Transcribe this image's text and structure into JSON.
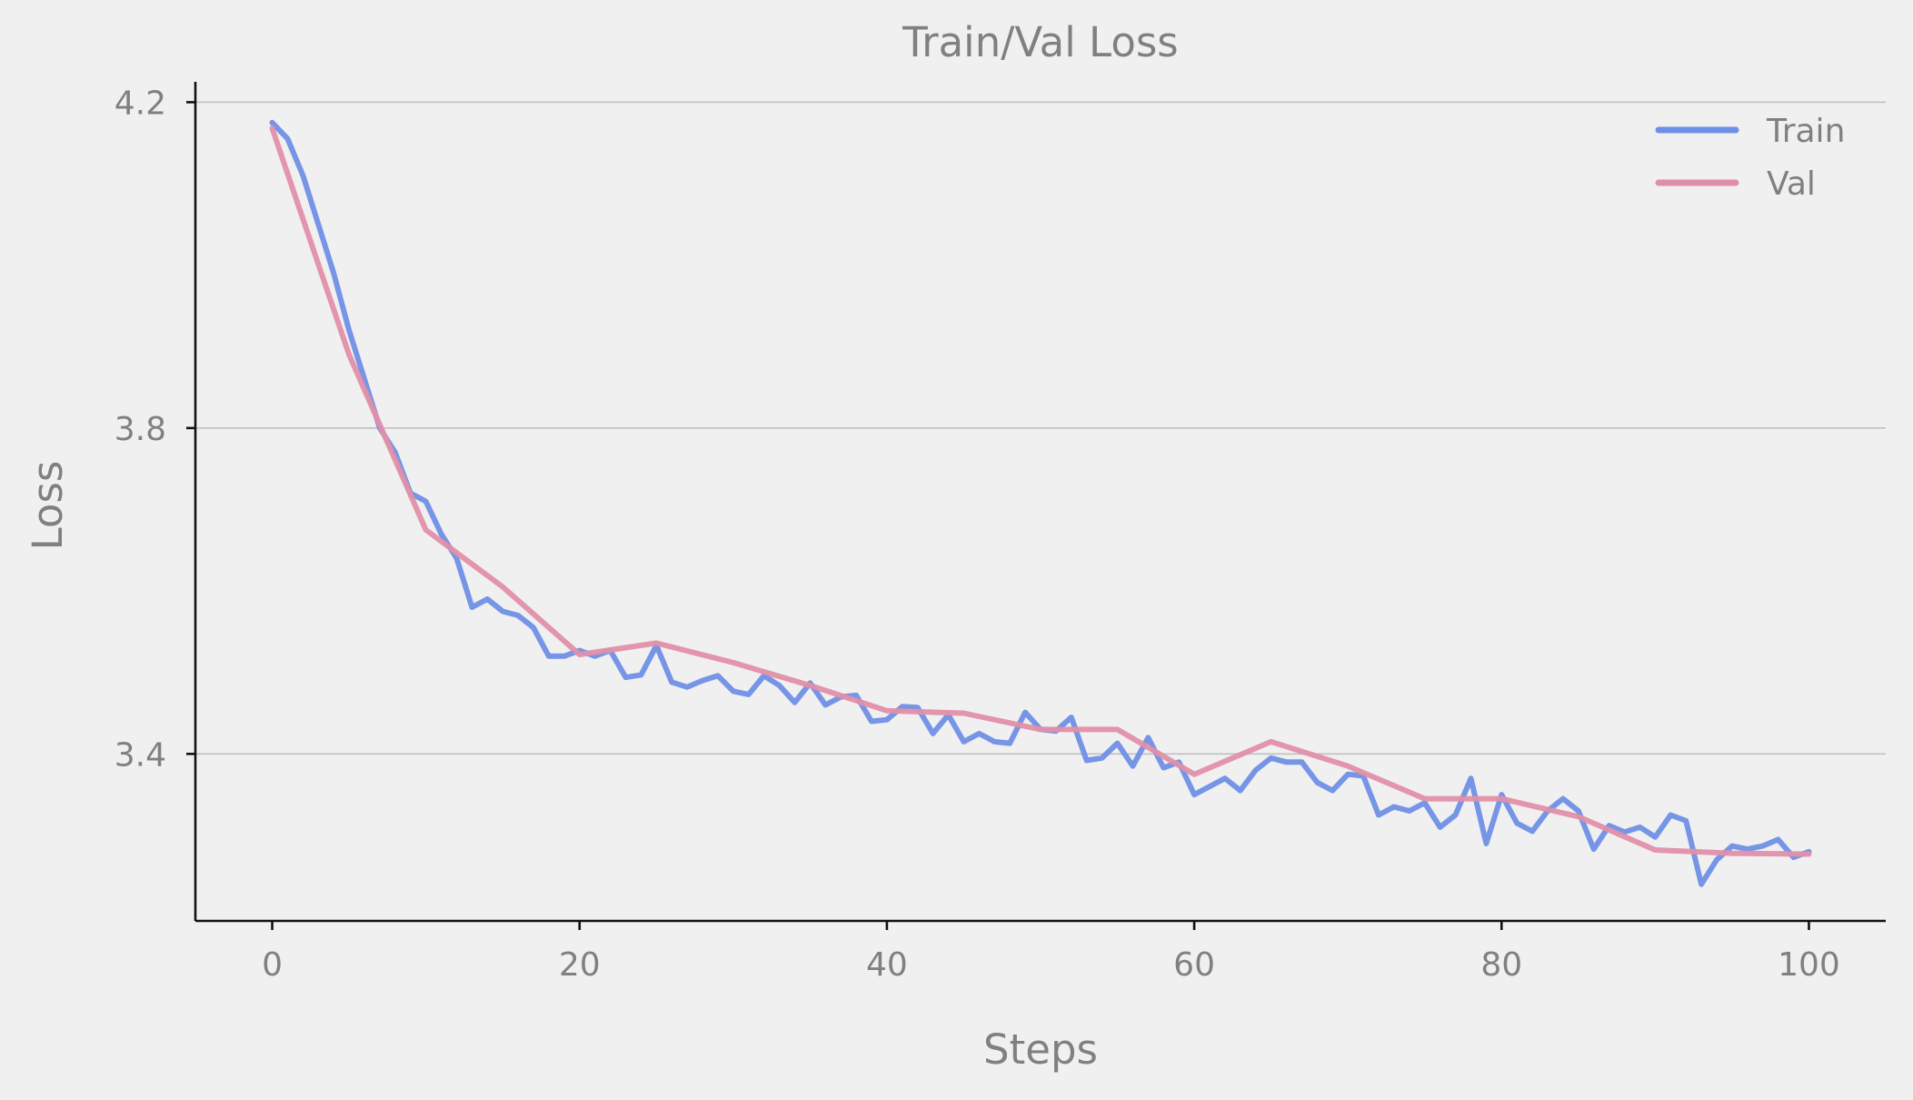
{
  "chart_data": {
    "type": "line",
    "title": "Train/Val Loss",
    "xlabel": "Steps",
    "ylabel": "Loss",
    "xlim": [
      -5,
      105
    ],
    "ylim": [
      3.195,
      4.225
    ],
    "xticks": [
      0,
      20,
      40,
      60,
      80,
      100
    ],
    "yticks": [
      3.4,
      3.8,
      4.2
    ],
    "xtick_labels": [
      "0",
      "20",
      "40",
      "60",
      "80",
      "100"
    ],
    "ytick_labels": [
      "3.4",
      "3.8",
      "4.2"
    ],
    "grid": "horizontal",
    "legend_position": "top-right",
    "series": [
      {
        "name": "Train",
        "color": "#6f8fe6",
        "x": [
          0,
          1,
          2,
          3,
          4,
          5,
          6,
          7,
          8,
          9,
          10,
          11,
          12,
          13,
          14,
          15,
          16,
          17,
          18,
          19,
          20,
          21,
          22,
          23,
          24,
          25,
          26,
          27,
          28,
          29,
          30,
          31,
          32,
          33,
          34,
          35,
          36,
          37,
          38,
          39,
          40,
          41,
          42,
          43,
          44,
          45,
          46,
          47,
          48,
          49,
          50,
          51,
          52,
          53,
          54,
          55,
          56,
          57,
          58,
          59,
          60,
          61,
          62,
          63,
          64,
          65,
          66,
          67,
          68,
          69,
          70,
          71,
          72,
          73,
          74,
          75,
          76,
          77,
          78,
          79,
          80,
          81,
          82,
          83,
          84,
          85,
          86,
          87,
          88,
          89,
          90,
          91,
          92,
          93,
          94,
          95,
          96,
          97,
          98,
          99,
          100
        ],
        "y": [
          4.175,
          4.155,
          4.11,
          4.05,
          3.99,
          3.92,
          3.86,
          3.8,
          3.77,
          3.72,
          3.71,
          3.67,
          3.64,
          3.58,
          3.59,
          3.575,
          3.57,
          3.555,
          3.52,
          3.52,
          3.527,
          3.52,
          3.527,
          3.494,
          3.497,
          3.533,
          3.488,
          3.482,
          3.49,
          3.496,
          3.477,
          3.473,
          3.496,
          3.484,
          3.463,
          3.487,
          3.46,
          3.47,
          3.472,
          3.44,
          3.442,
          3.458,
          3.457,
          3.425,
          3.448,
          3.415,
          3.425,
          3.415,
          3.413,
          3.451,
          3.43,
          3.428,
          3.445,
          3.392,
          3.395,
          3.413,
          3.385,
          3.42,
          3.383,
          3.39,
          3.35,
          3.36,
          3.37,
          3.355,
          3.38,
          3.395,
          3.39,
          3.39,
          3.365,
          3.355,
          3.375,
          3.373,
          3.325,
          3.335,
          3.33,
          3.34,
          3.31,
          3.325,
          3.37,
          3.29,
          3.35,
          3.315,
          3.305,
          3.33,
          3.345,
          3.33,
          3.283,
          3.312,
          3.304,
          3.31,
          3.298,
          3.325,
          3.318,
          3.24,
          3.27,
          3.287,
          3.283,
          3.287,
          3.295,
          3.273,
          3.28
        ]
      },
      {
        "name": "Val",
        "color": "#e08fa8",
        "x": [
          0,
          5,
          10,
          15,
          20,
          25,
          30,
          35,
          40,
          45,
          50,
          55,
          60,
          65,
          70,
          75,
          80,
          85,
          90,
          95,
          100
        ],
        "y": [
          4.168,
          3.89,
          3.675,
          3.605,
          3.522,
          3.536,
          3.512,
          3.484,
          3.453,
          3.45,
          3.43,
          3.43,
          3.375,
          3.415,
          3.385,
          3.345,
          3.345,
          3.323,
          3.282,
          3.278,
          3.277
        ]
      }
    ]
  }
}
